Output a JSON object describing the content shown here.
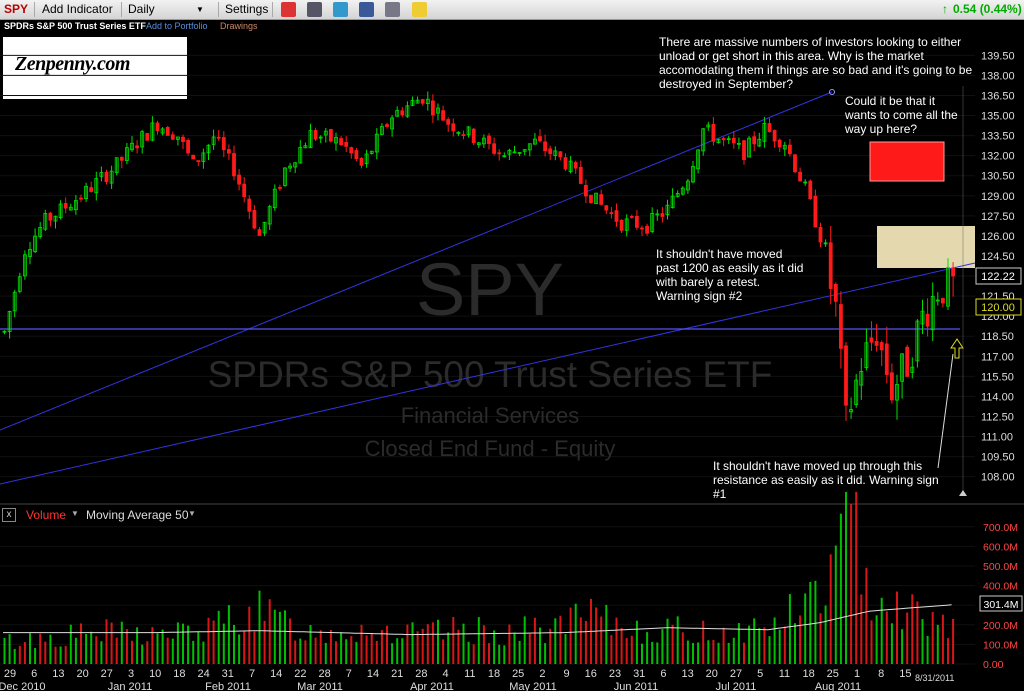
{
  "toolbar": {
    "symbol": "SPY",
    "add_indicator": "Add Indicator",
    "interval": "Daily",
    "settings": "Settings",
    "change": "0.54 (0.44%)"
  },
  "subbar": {
    "name": "SPDRs S&P 500 Trust Series ETF",
    "add_to_portfolio": "Add to Portfolio",
    "drawings": "Drawings"
  },
  "logo": {
    "text": "Zenpenny.com"
  },
  "watermark": {
    "symbol": "SPY",
    "name": "SPDRs S&P 500 Trust Series ETF",
    "sector": "Financial Services",
    "category": "Closed End Fund - Equity"
  },
  "annotations": {
    "top": "There are massive numbers of investors looking to either unload or get short in this area. Why is the market accomodating them if things are so bad and it's going to be destroyed in September?",
    "right": "Could it be that it wants to come all the way up here?",
    "mid": "It shouldn't have moved past 1200 as easily as it did with barely a retest. Warning sign #2",
    "bottom": "It shouldn't have moved up through this resistance as easily as it did. Warning sign #1"
  },
  "volume_panel": {
    "close_glyph": "x",
    "volume_label": "Volume",
    "ma_label": "Moving Average 50"
  },
  "colors": {
    "up": "#00e000",
    "down": "#ff1a1a",
    "trend": "#3333dd",
    "ma": "#e0e0e0"
  },
  "chart_data": {
    "type": "candlestick",
    "interval": "daily",
    "start": "2010-12-29",
    "end": "2011-08-31",
    "last_price": "122.22",
    "price_marker": "120.00",
    "price_ylim": [
      107,
      140.5
    ],
    "price_ticks": [
      "139.50",
      "138.00",
      "136.50",
      "135.00",
      "133.50",
      "132.00",
      "130.50",
      "129.00",
      "127.50",
      "126.00",
      "124.50",
      "123.00",
      "121.50",
      "120.00",
      "118.50",
      "117.00",
      "115.50",
      "114.00",
      "112.50",
      "111.00",
      "109.50",
      "108.00"
    ],
    "volume_ylim": [
      0,
      760
    ],
    "volume_ticks": [
      "700.0M",
      "600.0M",
      "500.0M",
      "400.0M",
      "300.0M",
      "200.0M",
      "100.0M",
      "0.00"
    ],
    "volume_ma50_last": "301.4M",
    "x_ticks": [
      "29",
      "6",
      "13",
      "20",
      "27",
      "3",
      "10",
      "18",
      "24",
      "31",
      "7",
      "14",
      "22",
      "28",
      "7",
      "14",
      "21",
      "28",
      "4",
      "11",
      "18",
      "25",
      "2",
      "9",
      "16",
      "23",
      "31",
      "6",
      "13",
      "20",
      "27",
      "5",
      "11",
      "18",
      "25",
      "1",
      "8",
      "15"
    ],
    "x_last_label": "8/31/2011",
    "month_labels": [
      "Dec 2010",
      "Jan 2011",
      "Feb 2011",
      "Mar 2011",
      "Apr 2011",
      "May 2011",
      "Jun 2011",
      "Jul 2011",
      "Aug 2011"
    ],
    "price_path": [
      [
        0,
        118.8
      ],
      [
        4,
        125.0
      ],
      [
        8,
        127.1
      ],
      [
        16,
        129.3
      ],
      [
        22,
        131.3
      ],
      [
        26,
        133.0
      ],
      [
        30,
        134.4
      ],
      [
        34,
        133.5
      ],
      [
        37,
        131.3
      ],
      [
        41,
        133.4
      ],
      [
        45,
        131.0
      ],
      [
        50,
        126.0
      ],
      [
        55,
        131.0
      ],
      [
        60,
        133.6
      ],
      [
        66,
        133.0
      ],
      [
        70,
        131.2
      ],
      [
        76,
        135.0
      ],
      [
        82,
        136.4
      ],
      [
        87,
        134.5
      ],
      [
        92,
        133.4
      ],
      [
        98,
        132.0
      ],
      [
        104,
        133.0
      ],
      [
        110,
        131.5
      ],
      [
        116,
        128.6
      ],
      [
        121,
        127.0
      ],
      [
        126,
        126.8
      ],
      [
        130,
        128.0
      ],
      [
        134,
        130.5
      ],
      [
        137,
        134.0
      ],
      [
        141,
        133.0
      ],
      [
        145,
        132.3
      ],
      [
        149,
        134.0
      ],
      [
        153,
        133.0
      ],
      [
        157,
        129.5
      ],
      [
        160,
        126.0
      ],
      [
        163,
        120.5
      ],
      [
        165,
        112.0
      ],
      [
        168,
        116.5
      ],
      [
        171,
        118.8
      ],
      [
        174,
        114.5
      ],
      [
        177,
        116.5
      ],
      [
        180,
        120.0
      ],
      [
        183,
        122.0
      ],
      [
        186,
        122.3
      ]
    ],
    "volume_path": [
      [
        0,
        110
      ],
      [
        10,
        140
      ],
      [
        20,
        160
      ],
      [
        30,
        150
      ],
      [
        40,
        170
      ],
      [
        45,
        250
      ],
      [
        50,
        260
      ],
      [
        60,
        160
      ],
      [
        70,
        180
      ],
      [
        80,
        150
      ],
      [
        90,
        170
      ],
      [
        100,
        160
      ],
      [
        110,
        200
      ],
      [
        115,
        240
      ],
      [
        120,
        190
      ],
      [
        130,
        170
      ],
      [
        140,
        160
      ],
      [
        150,
        190
      ],
      [
        155,
        270
      ],
      [
        160,
        380
      ],
      [
        163,
        500
      ],
      [
        165,
        710
      ],
      [
        167,
        620
      ],
      [
        170,
        400
      ],
      [
        175,
        300
      ],
      [
        180,
        250
      ],
      [
        186,
        200
      ]
    ],
    "ma50_path": [
      [
        0,
        160
      ],
      [
        30,
        160
      ],
      [
        50,
        170
      ],
      [
        80,
        150
      ],
      [
        110,
        160
      ],
      [
        130,
        185
      ],
      [
        150,
        175
      ],
      [
        160,
        210
      ],
      [
        170,
        270
      ],
      [
        186,
        302
      ]
    ]
  }
}
